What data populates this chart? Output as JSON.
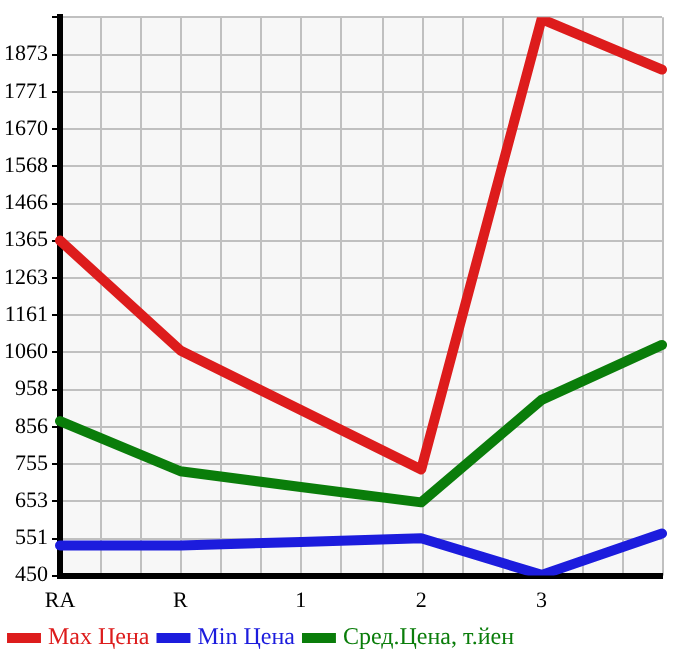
{
  "chart_data": {
    "type": "line",
    "categories": [
      "RA",
      "R",
      "1",
      "2",
      "3",
      null
    ],
    "series": [
      {
        "name": "Max Цена",
        "color": "#dd1c1c",
        "values": [
          1365,
          1065,
          902,
          740,
          1970,
          1832
        ]
      },
      {
        "name": "Min Цена",
        "color": "#1c1cdd",
        "values": [
          532,
          532,
          542,
          552,
          452,
          565
        ]
      },
      {
        "name": "Сред.Цена, т.йен",
        "color": "#0a7d0a",
        "values": [
          872,
          735,
          692,
          650,
          930,
          1080
        ]
      }
    ],
    "ylim": [
      450,
      1975
    ],
    "yticks": [
      450,
      551,
      653,
      755,
      856,
      958,
      1060,
      1161,
      1263,
      1365,
      1466,
      1568,
      1670,
      1771,
      1873,
      {
        "value": 1975,
        "label": null
      }
    ],
    "grid": true,
    "legend": "bottom",
    "marker": "none",
    "line_style": "solid"
  }
}
